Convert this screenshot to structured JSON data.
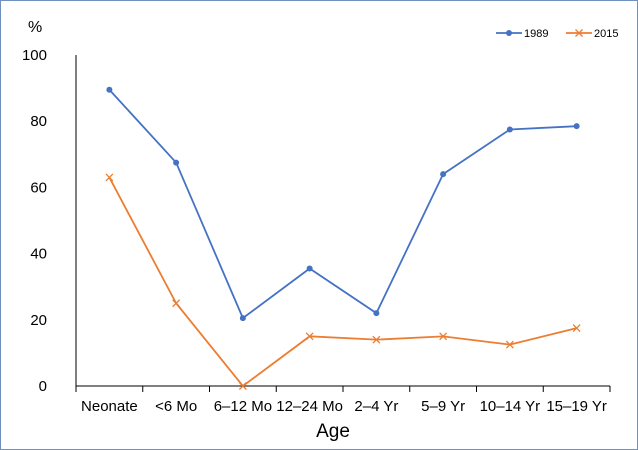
{
  "chart_data": {
    "type": "line",
    "title": "",
    "xlabel": "Age",
    "ylabel": "%",
    "categories": [
      "Neonate",
      "<6 Mo",
      "6–12 Mo",
      "12–24 Mo",
      "2–4 Yr",
      "5–9 Yr",
      "10–14 Yr",
      "15–19 Yr"
    ],
    "ylim": [
      0,
      100
    ],
    "yticks": [
      "0",
      "20",
      "40",
      "60",
      "80",
      "100"
    ],
    "grid": false,
    "legend_position": "top-right",
    "series": [
      {
        "name": "1989",
        "color": "#4472c4",
        "marker": "circle",
        "values": [
          89.5,
          67.5,
          20.5,
          35.5,
          22,
          64,
          77.5,
          78.5
        ]
      },
      {
        "name": "2015",
        "color": "#ed7d31",
        "marker": "x",
        "values": [
          63,
          25,
          0,
          15,
          14,
          15,
          12.5,
          17.5
        ]
      }
    ]
  }
}
